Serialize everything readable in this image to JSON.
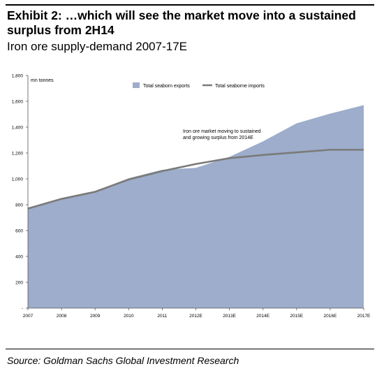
{
  "header": {
    "title": "Exhibit 2: …which will see the market move into a sustained surplus from 2H14",
    "subtitle": "Iron ore supply-demand 2007-17E"
  },
  "footer": {
    "source": "Source: Goldman Sachs Global Investment Research"
  },
  "colors": {
    "area": "#9dadcb",
    "line": "#7a7a7a",
    "axis": "#555555"
  },
  "chart_data": {
    "type": "area",
    "unit_label": "mn tonnes",
    "categories": [
      "2007",
      "2008",
      "2009",
      "2010",
      "2011",
      "2012E",
      "2013E",
      "2014E",
      "2015E",
      "2016E",
      "2017E"
    ],
    "series": [
      {
        "name": "Total seaborn exports",
        "type": "area",
        "values": [
          775,
          850,
          905,
          1005,
          1070,
          1085,
          1170,
          1290,
          1430,
          1505,
          1570
        ]
      },
      {
        "name": "Total seaborne imports",
        "type": "line",
        "values": [
          770,
          845,
          900,
          995,
          1060,
          1115,
          1160,
          1185,
          1205,
          1225,
          1225
        ]
      }
    ],
    "ylim": [
      0,
      1800
    ],
    "yticks": [
      "-",
      "200",
      "400",
      "600",
      "800",
      "1,000",
      "1,200",
      "1,400",
      "1,600",
      "1,800"
    ],
    "annotation": "Iron ore market moving to sustained and growing surplus from 2014E",
    "legend_position": "top",
    "grid": false
  }
}
